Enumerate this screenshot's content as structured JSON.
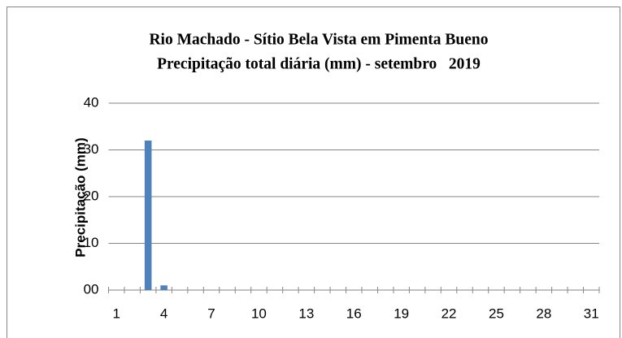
{
  "chart_data": {
    "type": "bar",
    "title": "Rio Machado - Sítio Bela Vista em Pimenta Bueno",
    "subtitle": "Precipitação total diária (mm) - setembro   2019",
    "y_label": "Precipitação (mm)",
    "categories": [
      1,
      null,
      null,
      4,
      null,
      null,
      7,
      null,
      null,
      10,
      null,
      null,
      13,
      null,
      null,
      16,
      null,
      null,
      19,
      null,
      null,
      22,
      null,
      null,
      25,
      null,
      null,
      28,
      null,
      null,
      31
    ],
    "values": [
      0,
      0,
      32,
      1,
      0,
      0,
      0,
      0,
      0,
      0,
      0,
      0,
      0,
      0,
      0,
      0,
      0,
      0,
      0,
      0,
      0,
      0,
      0,
      0,
      0,
      0,
      0,
      0,
      0,
      0,
      0
    ],
    "color": "#4f81bd",
    "ylim": [
      0,
      40
    ],
    "yticks": [
      {
        "value": 0,
        "label": "00"
      },
      10,
      20,
      30,
      40
    ],
    "grid": true
  }
}
